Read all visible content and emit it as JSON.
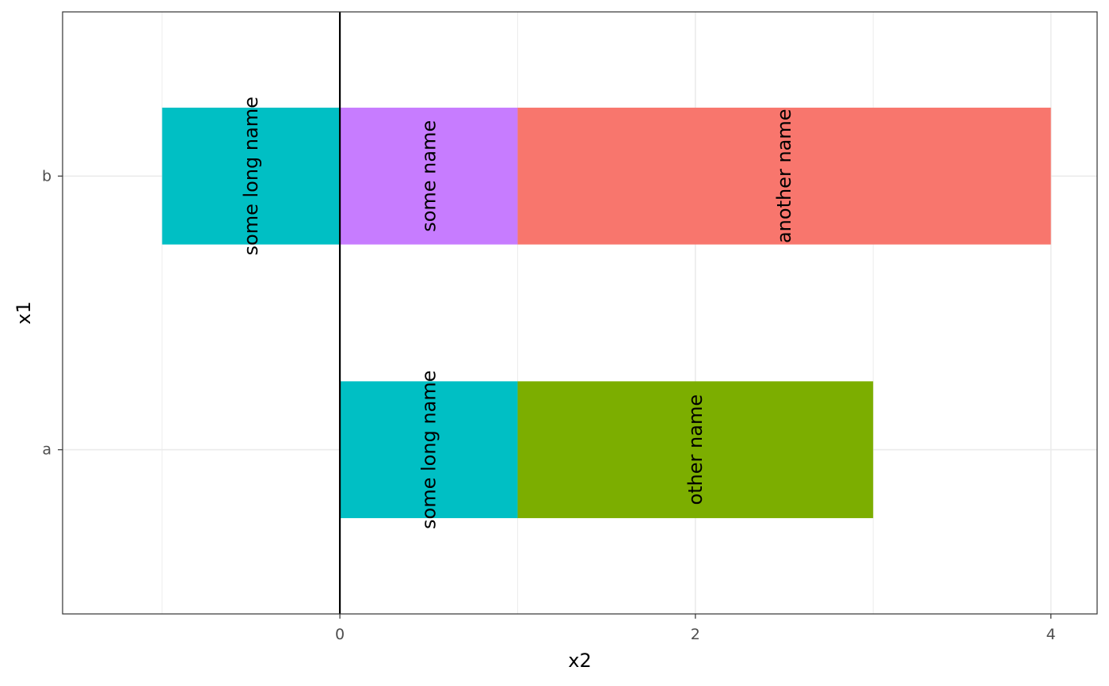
{
  "chart_data": {
    "type": "bar",
    "orientation": "horizontal",
    "stacked": true,
    "title": "",
    "xlabel": "x2",
    "ylabel": "x1",
    "categories": [
      "a",
      "b"
    ],
    "xlim": [
      -1.56,
      4.26
    ],
    "x_ticks": [
      0,
      2,
      4
    ],
    "x_tick_labels": [
      "0",
      "2",
      "4"
    ],
    "vline_x": 0,
    "grid": true,
    "legend": "none",
    "segments": [
      {
        "category": "a",
        "start": 0,
        "end": 1,
        "label": "some long name",
        "color": "#00BFC4"
      },
      {
        "category": "a",
        "start": 1,
        "end": 3,
        "label": "other name",
        "color": "#7CAE00"
      },
      {
        "category": "b",
        "start": -1,
        "end": 0,
        "label": "some long name",
        "color": "#00BFC4"
      },
      {
        "category": "b",
        "start": 0,
        "end": 1,
        "label": "some name",
        "color": "#C77CFF"
      },
      {
        "category": "b",
        "start": 1,
        "end": 4,
        "label": "another name",
        "color": "#F8766D"
      }
    ]
  }
}
